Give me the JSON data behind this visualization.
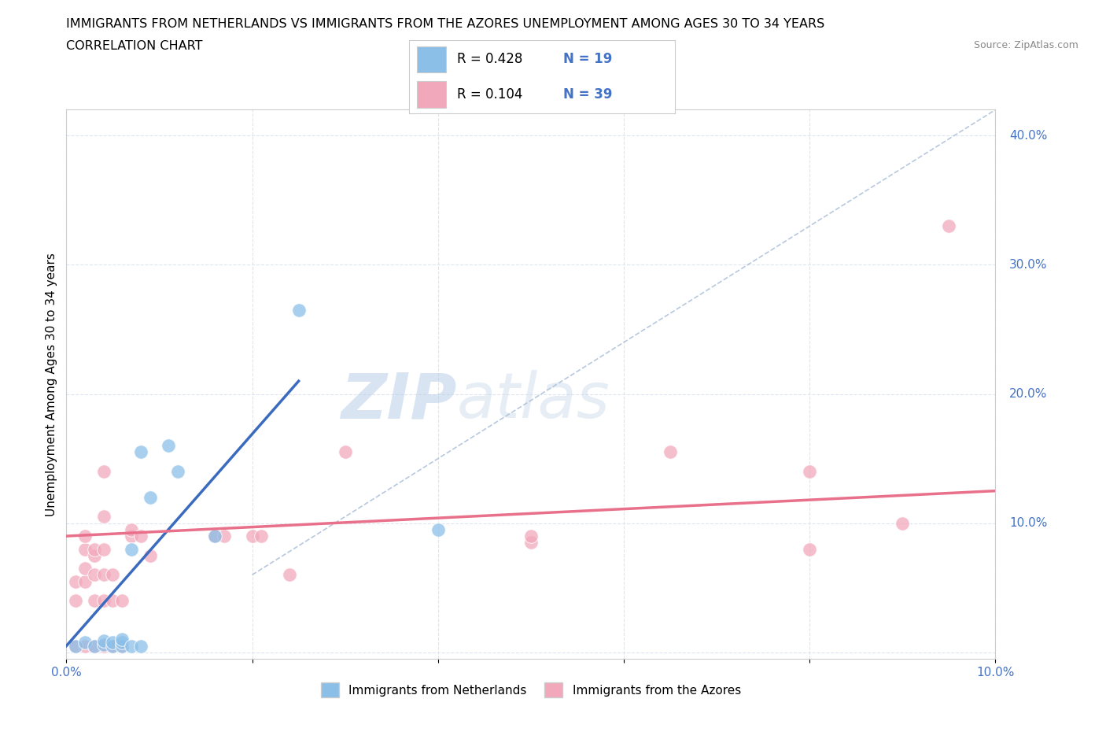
{
  "title_line1": "IMMIGRANTS FROM NETHERLANDS VS IMMIGRANTS FROM THE AZORES UNEMPLOYMENT AMONG AGES 30 TO 34 YEARS",
  "title_line2": "CORRELATION CHART",
  "source_text": "Source: ZipAtlas.com",
  "ylabel": "Unemployment Among Ages 30 to 34 years",
  "legend_bottom": [
    "Immigrants from Netherlands",
    "Immigrants from the Azores"
  ],
  "xlim": [
    0.0,
    0.1
  ],
  "ylim": [
    -0.005,
    0.42
  ],
  "xticks": [
    0.0,
    0.02,
    0.04,
    0.06,
    0.08,
    0.1
  ],
  "yticks": [
    0.0,
    0.1,
    0.2,
    0.3,
    0.4
  ],
  "background_color": "#ffffff",
  "blue_color": "#8bbfe8",
  "pink_color": "#f2a8bb",
  "blue_line_color": "#3b6bbf",
  "pink_line_color": "#e8708a",
  "legend_R_color": "#4472c4",
  "grid_color": "#dde5f0",
  "blue_scatter": [
    [
      0.001,
      0.005
    ],
    [
      0.002,
      0.008
    ],
    [
      0.003,
      0.005
    ],
    [
      0.004,
      0.006
    ],
    [
      0.004,
      0.009
    ],
    [
      0.005,
      0.005
    ],
    [
      0.005,
      0.008
    ],
    [
      0.006,
      0.005
    ],
    [
      0.006,
      0.008
    ],
    [
      0.006,
      0.01
    ],
    [
      0.007,
      0.005
    ],
    [
      0.007,
      0.08
    ],
    [
      0.008,
      0.005
    ],
    [
      0.008,
      0.155
    ],
    [
      0.009,
      0.12
    ],
    [
      0.011,
      0.16
    ],
    [
      0.012,
      0.14
    ],
    [
      0.016,
      0.09
    ],
    [
      0.025,
      0.265
    ],
    [
      0.04,
      0.095
    ]
  ],
  "pink_scatter": [
    [
      0.001,
      0.005
    ],
    [
      0.001,
      0.04
    ],
    [
      0.001,
      0.055
    ],
    [
      0.002,
      0.005
    ],
    [
      0.002,
      0.055
    ],
    [
      0.002,
      0.065
    ],
    [
      0.002,
      0.08
    ],
    [
      0.002,
      0.09
    ],
    [
      0.003,
      0.005
    ],
    [
      0.003,
      0.04
    ],
    [
      0.003,
      0.06
    ],
    [
      0.003,
      0.075
    ],
    [
      0.003,
      0.08
    ],
    [
      0.004,
      0.005
    ],
    [
      0.004,
      0.04
    ],
    [
      0.004,
      0.06
    ],
    [
      0.004,
      0.08
    ],
    [
      0.004,
      0.105
    ],
    [
      0.004,
      0.14
    ],
    [
      0.005,
      0.005
    ],
    [
      0.005,
      0.04
    ],
    [
      0.005,
      0.06
    ],
    [
      0.006,
      0.005
    ],
    [
      0.006,
      0.04
    ],
    [
      0.007,
      0.09
    ],
    [
      0.007,
      0.095
    ],
    [
      0.008,
      0.09
    ],
    [
      0.009,
      0.075
    ],
    [
      0.016,
      0.09
    ],
    [
      0.017,
      0.09
    ],
    [
      0.02,
      0.09
    ],
    [
      0.021,
      0.09
    ],
    [
      0.024,
      0.06
    ],
    [
      0.03,
      0.155
    ],
    [
      0.05,
      0.085
    ],
    [
      0.05,
      0.09
    ],
    [
      0.065,
      0.155
    ],
    [
      0.08,
      0.08
    ],
    [
      0.08,
      0.14
    ],
    [
      0.09,
      0.1
    ],
    [
      0.095,
      0.33
    ]
  ],
  "blue_trend_x": [
    0.0,
    0.025
  ],
  "blue_trend_y": [
    0.005,
    0.21
  ],
  "pink_trend_x": [
    0.0,
    0.1
  ],
  "pink_trend_y": [
    0.09,
    0.125
  ],
  "dashed_line_x": [
    0.02,
    0.1
  ],
  "dashed_line_y": [
    0.06,
    0.42
  ],
  "watermark_zip": "ZIP",
  "watermark_atlas": "atlas"
}
